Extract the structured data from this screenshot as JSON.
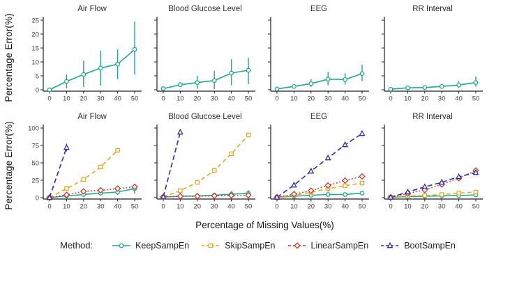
{
  "figure": {
    "y_axis_label": "Percentage Error(%)",
    "x_axis_label": "Percentage of Missing Values(%)",
    "legend": {
      "label": "Method:",
      "items": [
        {
          "name": "KeepSampEn",
          "color": "#1FA88C",
          "marker": "circle",
          "dash": "solid"
        },
        {
          "name": "SkipSampEn",
          "color": "#E2A82B",
          "marker": "square",
          "dash": "dashed"
        },
        {
          "name": "LinearSampEn",
          "color": "#CF3A2B",
          "marker": "diamond",
          "dash": "dotted"
        },
        {
          "name": "BootSampEn",
          "color": "#2B2FA8",
          "marker": "triangle",
          "dash": "longdash"
        }
      ]
    }
  },
  "chart_data": [
    {
      "type": "line",
      "title": "Air Flow",
      "row": 1,
      "show_y_labels": true,
      "xlim": [
        0,
        50
      ],
      "ylim": [
        0,
        25
      ],
      "xticks": [
        0,
        10,
        20,
        30,
        40,
        50
      ],
      "yticks": [
        0,
        5,
        10,
        15,
        20,
        25
      ],
      "x": [
        0,
        10,
        20,
        30,
        40,
        50
      ],
      "series": [
        {
          "name": "KeepSampEn",
          "values": [
            0,
            3,
            5.5,
            7.8,
            9.2,
            14.5
          ],
          "err_lo": [
            null,
            0.5,
            1,
            1.5,
            3.8,
            5.5
          ],
          "err_hi": [
            null,
            5.5,
            10.5,
            14,
            14.5,
            24.5
          ]
        }
      ]
    },
    {
      "type": "line",
      "title": "Blood Glucose Level",
      "row": 1,
      "show_y_labels": false,
      "xlim": [
        0,
        50
      ],
      "ylim": [
        0,
        25
      ],
      "xticks": [
        0,
        10,
        20,
        30,
        40,
        50
      ],
      "yticks": [
        0,
        5,
        10,
        15,
        20,
        25
      ],
      "x": [
        0,
        10,
        20,
        30,
        40,
        50
      ],
      "series": [
        {
          "name": "KeepSampEn",
          "values": [
            0.4,
            1.8,
            2.6,
            3.3,
            6,
            7
          ],
          "err_lo": [
            null,
            1,
            0.4,
            0.3,
            1.6,
            2
          ],
          "err_hi": [
            null,
            2.8,
            5,
            6.8,
            11,
            11.5
          ]
        }
      ]
    },
    {
      "type": "line",
      "title": "EEG",
      "row": 1,
      "show_y_labels": false,
      "xlim": [
        0,
        50
      ],
      "ylim": [
        0,
        25
      ],
      "xticks": [
        0,
        10,
        20,
        30,
        40,
        50
      ],
      "yticks": [
        0,
        5,
        10,
        15,
        20,
        25
      ],
      "x": [
        0,
        10,
        20,
        30,
        40,
        50
      ],
      "series": [
        {
          "name": "KeepSampEn",
          "values": [
            0.3,
            1.2,
            2.2,
            3.8,
            3.7,
            5.8
          ],
          "err_lo": [
            null,
            0.6,
            1,
            1.6,
            1.8,
            3.1
          ],
          "err_hi": [
            null,
            1.9,
            3.8,
            6.4,
            6,
            9
          ]
        }
      ]
    },
    {
      "type": "line",
      "title": "RR Interval",
      "row": 1,
      "show_y_labels": false,
      "xlim": [
        0,
        50
      ],
      "ylim": [
        0,
        25
      ],
      "xticks": [
        0,
        10,
        20,
        30,
        40,
        50
      ],
      "yticks": [
        0,
        5,
        10,
        15,
        20,
        25
      ],
      "x": [
        0,
        10,
        20,
        30,
        40,
        50
      ],
      "series": [
        {
          "name": "KeepSampEn",
          "values": [
            0.2,
            0.7,
            0.8,
            1.2,
            1.7,
            2.6
          ],
          "err_lo": [
            null,
            0.4,
            0.4,
            0.5,
            0.7,
            1.1
          ],
          "err_hi": [
            null,
            1.1,
            1.3,
            2.2,
            3,
            4.8
          ]
        }
      ]
    },
    {
      "type": "line",
      "title": "Air Flow",
      "row": 2,
      "show_y_labels": true,
      "xlim": [
        0,
        50
      ],
      "ylim": [
        0,
        100
      ],
      "xticks": [
        0,
        10,
        20,
        30,
        40,
        50
      ],
      "yticks": [
        0,
        25,
        50,
        75,
        100
      ],
      "x": [
        0,
        10,
        20,
        30,
        40,
        50
      ],
      "series": [
        {
          "name": "KeepSampEn",
          "values": [
            0,
            2.5,
            4.5,
            6.5,
            8,
            13
          ],
          "err_lo": [
            null,
            1,
            2,
            3,
            4,
            6
          ],
          "err_hi": [
            null,
            4,
            7,
            10,
            12,
            20
          ]
        },
        {
          "name": "SkipSampEn",
          "values": [
            0,
            13,
            26,
            44,
            68,
            null
          ],
          "err_lo": [
            null,
            11,
            23,
            41,
            65,
            null
          ],
          "err_hi": [
            null,
            15,
            29,
            47,
            71,
            null
          ]
        },
        {
          "name": "LinearSampEn",
          "values": [
            0,
            4,
            9,
            10.5,
            13,
            15.5
          ],
          "err_lo": [
            null,
            2.5,
            7,
            8.5,
            11,
            13
          ],
          "err_hi": [
            null,
            5.5,
            11,
            12.5,
            15,
            18
          ]
        },
        {
          "name": "BootSampEn",
          "values": [
            0,
            72,
            null,
            null,
            null,
            null
          ],
          "err_lo": [
            null,
            66.5,
            null,
            null,
            null,
            null
          ],
          "err_hi": [
            null,
            77.5,
            null,
            null,
            null,
            null
          ]
        }
      ]
    },
    {
      "type": "line",
      "title": "Blood Glucose Level",
      "row": 2,
      "show_y_labels": false,
      "xlim": [
        0,
        50
      ],
      "ylim": [
        0,
        100
      ],
      "xticks": [
        0,
        10,
        20,
        30,
        40,
        50
      ],
      "yticks": [
        0,
        25,
        50,
        75,
        100
      ],
      "x": [
        0,
        10,
        20,
        30,
        40,
        50
      ],
      "series": [
        {
          "name": "KeepSampEn",
          "values": [
            1,
            2,
            2.5,
            3.5,
            5,
            6
          ],
          "err_lo": [
            null,
            1,
            1.5,
            2,
            1.5,
            2
          ],
          "err_hi": [
            null,
            3,
            4,
            5,
            9.5,
            10.5
          ]
        },
        {
          "name": "SkipSampEn",
          "values": [
            1,
            10,
            22,
            39,
            63,
            90
          ],
          "err_lo": [
            null,
            8.5,
            20,
            37,
            61,
            87
          ],
          "err_hi": [
            null,
            11.5,
            24,
            41,
            65,
            93
          ]
        },
        {
          "name": "LinearSampEn",
          "values": [
            1,
            2,
            2,
            2.5,
            3,
            3.5
          ],
          "err_lo": [
            null,
            1,
            1,
            1.5,
            2,
            2.5
          ],
          "err_hi": [
            null,
            3,
            3,
            3.5,
            4,
            4.5
          ]
        },
        {
          "name": "BootSampEn",
          "values": [
            1,
            94,
            null,
            null,
            null,
            null
          ],
          "err_lo": [
            null,
            91,
            null,
            null,
            null,
            null
          ],
          "err_hi": [
            null,
            97,
            null,
            null,
            null,
            null
          ]
        }
      ]
    },
    {
      "type": "line",
      "title": "EEG",
      "row": 2,
      "show_y_labels": false,
      "xlim": [
        0,
        50
      ],
      "ylim": [
        0,
        100
      ],
      "xticks": [
        0,
        10,
        20,
        30,
        40,
        50
      ],
      "yticks": [
        0,
        25,
        50,
        75,
        100
      ],
      "x": [
        0,
        10,
        20,
        30,
        40,
        50
      ],
      "series": [
        {
          "name": "KeepSampEn",
          "values": [
            0.5,
            2,
            3.5,
            4.5,
            4.5,
            6.5
          ],
          "err_lo": [
            null,
            1,
            2.5,
            3,
            3,
            4.5
          ],
          "err_hi": [
            null,
            3,
            4.5,
            6,
            6,
            8.5
          ]
        },
        {
          "name": "SkipSampEn",
          "values": [
            0.5,
            3.5,
            7.5,
            13,
            17,
            21
          ],
          "err_lo": [
            null,
            2.5,
            5.5,
            8.5,
            14,
            18
          ],
          "err_hi": [
            null,
            4.5,
            9.5,
            17,
            20,
            24
          ]
        },
        {
          "name": "LinearSampEn",
          "values": [
            0.5,
            5,
            10,
            17.5,
            24.5,
            30.5
          ],
          "err_lo": [
            null,
            4,
            8.5,
            15.5,
            22.5,
            27.5
          ],
          "err_hi": [
            null,
            6,
            11.5,
            19.5,
            26.5,
            33.5
          ]
        },
        {
          "name": "BootSampEn",
          "values": [
            0.5,
            18,
            38,
            57,
            76,
            92
          ],
          "err_lo": [
            null,
            16,
            35.5,
            54,
            73,
            89
          ],
          "err_hi": [
            null,
            20,
            40.5,
            60,
            79,
            95
          ]
        }
      ]
    },
    {
      "type": "line",
      "title": "RR Interval",
      "row": 2,
      "show_y_labels": false,
      "xlim": [
        0,
        50
      ],
      "ylim": [
        0,
        100
      ],
      "xticks": [
        0,
        10,
        20,
        30,
        40,
        50
      ],
      "yticks": [
        0,
        25,
        50,
        75,
        100
      ],
      "x": [
        0,
        10,
        20,
        30,
        40,
        50
      ],
      "series": [
        {
          "name": "KeepSampEn",
          "values": [
            0.5,
            1.5,
            2,
            2.5,
            3,
            4
          ],
          "err_lo": [
            null,
            0.5,
            1,
            1.5,
            2,
            3
          ],
          "err_hi": [
            null,
            2.5,
            3,
            3.5,
            4,
            5
          ]
        },
        {
          "name": "SkipSampEn",
          "values": [
            0.5,
            2.5,
            3,
            4.5,
            6.5,
            8
          ],
          "err_lo": [
            null,
            1.5,
            2,
            3.5,
            5,
            6.5
          ],
          "err_hi": [
            null,
            3.5,
            4,
            5.5,
            8,
            9.5
          ]
        },
        {
          "name": "LinearSampEn",
          "values": [
            0.5,
            6,
            11,
            19,
            28,
            39
          ],
          "err_lo": [
            null,
            4.5,
            9,
            17,
            26,
            36.5
          ],
          "err_hi": [
            null,
            7.5,
            13,
            21,
            30,
            41.5
          ]
        },
        {
          "name": "BootSampEn",
          "values": [
            0.5,
            8,
            15.5,
            22,
            30,
            36
          ],
          "err_lo": [
            null,
            6.5,
            13.5,
            20,
            28,
            34
          ],
          "err_hi": [
            null,
            9.5,
            17.5,
            24,
            32,
            38
          ]
        }
      ]
    }
  ]
}
